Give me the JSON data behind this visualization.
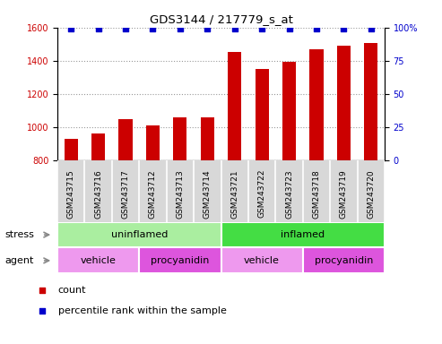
{
  "title": "GDS3144 / 217779_s_at",
  "samples": [
    "GSM243715",
    "GSM243716",
    "GSM243717",
    "GSM243712",
    "GSM243713",
    "GSM243714",
    "GSM243721",
    "GSM243722",
    "GSM243723",
    "GSM243718",
    "GSM243719",
    "GSM243720"
  ],
  "counts": [
    925,
    960,
    1045,
    1010,
    1060,
    1060,
    1450,
    1350,
    1395,
    1470,
    1490,
    1505
  ],
  "percentile_ranks": [
    99,
    99,
    99,
    99,
    99,
    99,
    99,
    99,
    99,
    99,
    99,
    99
  ],
  "bar_color": "#cc0000",
  "dot_color": "#0000cc",
  "ylim_left": [
    800,
    1600
  ],
  "ylim_right": [
    0,
    100
  ],
  "yticks_left": [
    800,
    1000,
    1200,
    1400,
    1600
  ],
  "yticks_right": [
    0,
    25,
    50,
    75,
    100
  ],
  "stress_labels": [
    {
      "text": "uninflamed",
      "start": 0,
      "end": 6,
      "color": "#aaeea0"
    },
    {
      "text": "inflamed",
      "start": 6,
      "end": 12,
      "color": "#44dd44"
    }
  ],
  "agent_labels": [
    {
      "text": "vehicle",
      "start": 0,
      "end": 3,
      "color": "#ee99ee"
    },
    {
      "text": "procyanidin",
      "start": 3,
      "end": 6,
      "color": "#dd55dd"
    },
    {
      "text": "vehicle",
      "start": 6,
      "end": 9,
      "color": "#ee99ee"
    },
    {
      "text": "procyanidin",
      "start": 9,
      "end": 12,
      "color": "#dd55dd"
    }
  ],
  "legend_count_color": "#cc0000",
  "legend_dot_color": "#0000cc",
  "bar_width": 0.5,
  "plot_bg_color": "#ffffff",
  "xtick_bg_color": "#d8d8d8",
  "grid_color": "#888888",
  "label_row1": "stress",
  "label_row2": "agent"
}
